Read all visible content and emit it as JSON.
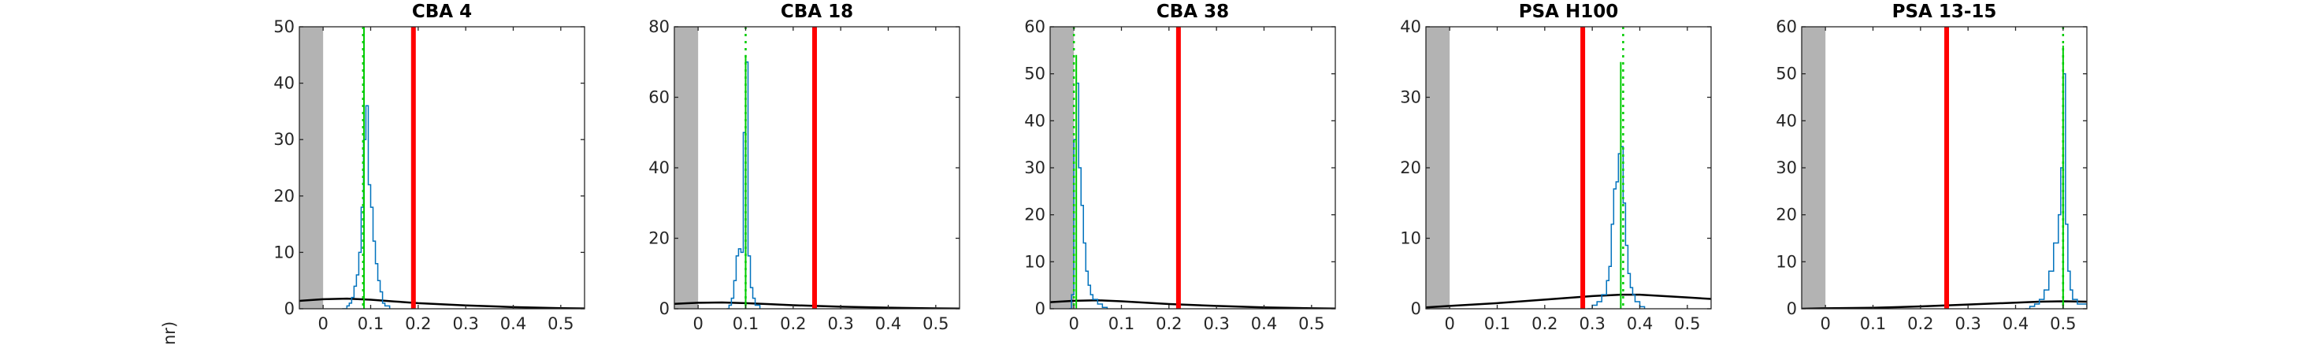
{
  "figure": {
    "ylabel_fragment": "nr)"
  },
  "chart_data": [
    {
      "type": "histogram",
      "title": "CBA 4",
      "xlim": [
        -0.05,
        0.55
      ],
      "ylim": [
        0,
        50
      ],
      "xticks": [
        0,
        0.1,
        0.2,
        0.3,
        0.4,
        0.5
      ],
      "yticks": [
        0,
        10,
        20,
        30,
        40,
        50
      ],
      "shaded_region": [
        -0.05,
        0.0
      ],
      "red_line_x": 0.19,
      "green_dotted_x": 0.084,
      "green_peak_y": 50,
      "green_spike_x": 0.086,
      "blue_hist": [
        [
          0.04,
          0
        ],
        [
          0.05,
          0.5
        ],
        [
          0.055,
          1
        ],
        [
          0.06,
          2
        ],
        [
          0.065,
          4
        ],
        [
          0.07,
          6
        ],
        [
          0.075,
          10
        ],
        [
          0.08,
          18
        ],
        [
          0.085,
          30
        ],
        [
          0.09,
          36
        ],
        [
          0.095,
          22
        ],
        [
          0.1,
          18
        ],
        [
          0.105,
          12
        ],
        [
          0.11,
          8
        ],
        [
          0.115,
          5
        ],
        [
          0.12,
          3
        ],
        [
          0.125,
          1
        ],
        [
          0.13,
          0.5
        ],
        [
          0.14,
          0
        ]
      ],
      "black_curve": [
        [
          -0.05,
          1.4
        ],
        [
          0.0,
          1.7
        ],
        [
          0.05,
          1.8
        ],
        [
          0.1,
          1.6
        ],
        [
          0.15,
          1.3
        ],
        [
          0.2,
          1.0
        ],
        [
          0.3,
          0.6
        ],
        [
          0.4,
          0.3
        ],
        [
          0.5,
          0.1
        ],
        [
          0.55,
          0.05
        ]
      ],
      "colors": {
        "red": "#ff0000",
        "green": "#00cc00",
        "blue": "#0072bd",
        "black": "#000000",
        "shade": "#b3b3b3"
      }
    },
    {
      "type": "histogram",
      "title": "CBA 18",
      "xlim": [
        -0.05,
        0.55
      ],
      "ylim": [
        0,
        80
      ],
      "xticks": [
        0,
        0.1,
        0.2,
        0.3,
        0.4,
        0.5
      ],
      "yticks": [
        0,
        20,
        40,
        60,
        80
      ],
      "shaded_region": [
        -0.05,
        0.0
      ],
      "red_line_x": 0.245,
      "green_dotted_x": 0.1,
      "green_peak_y": 72,
      "green_spike_x": 0.1,
      "blue_hist": [
        [
          0.06,
          0
        ],
        [
          0.065,
          1
        ],
        [
          0.07,
          3
        ],
        [
          0.075,
          8
        ],
        [
          0.08,
          15
        ],
        [
          0.085,
          17
        ],
        [
          0.09,
          16
        ],
        [
          0.095,
          50
        ],
        [
          0.1,
          70
        ],
        [
          0.105,
          15
        ],
        [
          0.11,
          6
        ],
        [
          0.115,
          3
        ],
        [
          0.12,
          1
        ],
        [
          0.13,
          0
        ]
      ],
      "black_curve": [
        [
          -0.05,
          1.4
        ],
        [
          0.0,
          1.7
        ],
        [
          0.05,
          1.8
        ],
        [
          0.1,
          1.6
        ],
        [
          0.15,
          1.3
        ],
        [
          0.2,
          1.0
        ],
        [
          0.3,
          0.6
        ],
        [
          0.4,
          0.3
        ],
        [
          0.5,
          0.1
        ],
        [
          0.55,
          0.05
        ]
      ],
      "colors": {
        "red": "#ff0000",
        "green": "#00cc00",
        "blue": "#0072bd",
        "black": "#000000",
        "shade": "#b3b3b3"
      }
    },
    {
      "type": "histogram",
      "title": "CBA 38",
      "xlim": [
        -0.05,
        0.55
      ],
      "ylim": [
        0,
        60
      ],
      "xticks": [
        0,
        0.1,
        0.2,
        0.3,
        0.4,
        0.5
      ],
      "yticks": [
        0,
        10,
        20,
        30,
        40,
        50,
        60
      ],
      "shaded_region": [
        -0.05,
        0.0
      ],
      "red_line_x": 0.22,
      "green_dotted_x": 0.0,
      "green_peak_y": 54,
      "green_spike_x": 0.005,
      "blue_hist": [
        [
          -0.01,
          0
        ],
        [
          -0.005,
          3
        ],
        [
          0.0,
          36
        ],
        [
          0.005,
          48
        ],
        [
          0.01,
          30
        ],
        [
          0.015,
          22
        ],
        [
          0.02,
          14
        ],
        [
          0.025,
          8
        ],
        [
          0.03,
          5
        ],
        [
          0.035,
          3
        ],
        [
          0.04,
          2
        ],
        [
          0.05,
          1
        ],
        [
          0.06,
          0.3
        ],
        [
          0.07,
          0
        ]
      ],
      "black_curve": [
        [
          -0.05,
          1.4
        ],
        [
          0.0,
          1.7
        ],
        [
          0.05,
          1.8
        ],
        [
          0.1,
          1.6
        ],
        [
          0.15,
          1.3
        ],
        [
          0.2,
          1.0
        ],
        [
          0.3,
          0.6
        ],
        [
          0.4,
          0.3
        ],
        [
          0.5,
          0.1
        ],
        [
          0.55,
          0.05
        ]
      ],
      "colors": {
        "red": "#ff0000",
        "green": "#00cc00",
        "blue": "#0072bd",
        "black": "#000000",
        "shade": "#b3b3b3"
      }
    },
    {
      "type": "histogram",
      "title": "PSA H100",
      "xlim": [
        -0.05,
        0.55
      ],
      "ylim": [
        0,
        40
      ],
      "xticks": [
        0,
        0.1,
        0.2,
        0.3,
        0.4,
        0.5
      ],
      "yticks": [
        0,
        10,
        20,
        30,
        40
      ],
      "shaded_region": [
        -0.05,
        0.0
      ],
      "red_line_x": 0.28,
      "green_dotted_x": 0.365,
      "green_peak_y": 35,
      "green_spike_x": 0.36,
      "blue_hist": [
        [
          0.29,
          0
        ],
        [
          0.3,
          0.5
        ],
        [
          0.31,
          1
        ],
        [
          0.32,
          2
        ],
        [
          0.33,
          4
        ],
        [
          0.335,
          6
        ],
        [
          0.34,
          12
        ],
        [
          0.345,
          17
        ],
        [
          0.35,
          18
        ],
        [
          0.355,
          22
        ],
        [
          0.36,
          23
        ],
        [
          0.365,
          15
        ],
        [
          0.37,
          9
        ],
        [
          0.375,
          5
        ],
        [
          0.38,
          3
        ],
        [
          0.385,
          2
        ],
        [
          0.39,
          1
        ],
        [
          0.4,
          0.3
        ],
        [
          0.41,
          0
        ]
      ],
      "black_curve": [
        [
          -0.05,
          0.2
        ],
        [
          0.0,
          0.4
        ],
        [
          0.1,
          0.8
        ],
        [
          0.2,
          1.3
        ],
        [
          0.3,
          1.8
        ],
        [
          0.36,
          2.0
        ],
        [
          0.4,
          2.0
        ],
        [
          0.5,
          1.6
        ],
        [
          0.55,
          1.4
        ]
      ],
      "colors": {
        "red": "#ff0000",
        "green": "#00cc00",
        "blue": "#0072bd",
        "black": "#000000",
        "shade": "#b3b3b3"
      }
    },
    {
      "type": "histogram",
      "title": "PSA 13-15",
      "xlim": [
        -0.05,
        0.55
      ],
      "ylim": [
        0,
        60
      ],
      "xticks": [
        0,
        0.1,
        0.2,
        0.3,
        0.4,
        0.5
      ],
      "yticks": [
        0,
        10,
        20,
        30,
        40,
        50,
        60
      ],
      "shaded_region": [
        -0.05,
        0.0
      ],
      "red_line_x": 0.255,
      "green_dotted_x": 0.5,
      "green_peak_y": 56,
      "green_spike_x": 0.5,
      "blue_hist": [
        [
          0.42,
          0
        ],
        [
          0.43,
          0.5
        ],
        [
          0.44,
          1
        ],
        [
          0.45,
          2
        ],
        [
          0.46,
          4
        ],
        [
          0.47,
          8
        ],
        [
          0.48,
          14
        ],
        [
          0.49,
          20
        ],
        [
          0.495,
          30
        ],
        [
          0.5,
          50
        ],
        [
          0.505,
          18
        ],
        [
          0.51,
          8
        ],
        [
          0.515,
          4
        ],
        [
          0.52,
          2
        ],
        [
          0.53,
          1
        ],
        [
          0.55,
          0.3
        ]
      ],
      "black_curve": [
        [
          -0.05,
          0.0
        ],
        [
          0.0,
          0.1
        ],
        [
          0.1,
          0.2
        ],
        [
          0.2,
          0.5
        ],
        [
          0.3,
          0.9
        ],
        [
          0.4,
          1.3
        ],
        [
          0.45,
          1.5
        ],
        [
          0.5,
          1.6
        ],
        [
          0.55,
          1.5
        ]
      ],
      "colors": {
        "red": "#ff0000",
        "green": "#00cc00",
        "blue": "#0072bd",
        "black": "#000000",
        "shade": "#b3b3b3"
      }
    }
  ]
}
